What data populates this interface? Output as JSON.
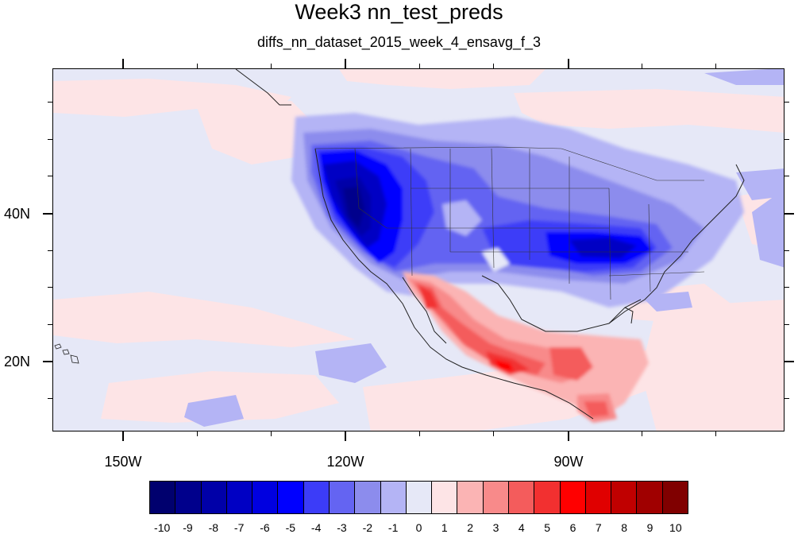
{
  "header": {
    "title": "Week3 nn_test_preds",
    "subtitle": "diffs_nn_dataset_2015_week_4_ensavg_f_3"
  },
  "map": {
    "lon_labels": [
      "150W",
      "120W",
      "90W"
    ],
    "lat_labels": [
      "40N",
      "20N"
    ],
    "background_color": "#e6e8f7"
  },
  "colorbar": {
    "labels": [
      "-10",
      "-9",
      "-8",
      "-7",
      "-6",
      "-5",
      "-4",
      "-3",
      "-2",
      "-1",
      "0",
      "1",
      "2",
      "3",
      "4",
      "5",
      "6",
      "7",
      "8",
      "9",
      "10"
    ],
    "colors": [
      "#00006e",
      "#00008c",
      "#0000a8",
      "#0000c4",
      "#0000e0",
      "#0000ff",
      "#3c3cf8",
      "#6464f2",
      "#8c8ced",
      "#b4b4f5",
      "#e6e8f7",
      "#fde4e6",
      "#fbb4b4",
      "#f88a8a",
      "#f45c5c",
      "#f23030",
      "#ff0000",
      "#e00000",
      "#c00000",
      "#a00000",
      "#800000"
    ]
  }
}
